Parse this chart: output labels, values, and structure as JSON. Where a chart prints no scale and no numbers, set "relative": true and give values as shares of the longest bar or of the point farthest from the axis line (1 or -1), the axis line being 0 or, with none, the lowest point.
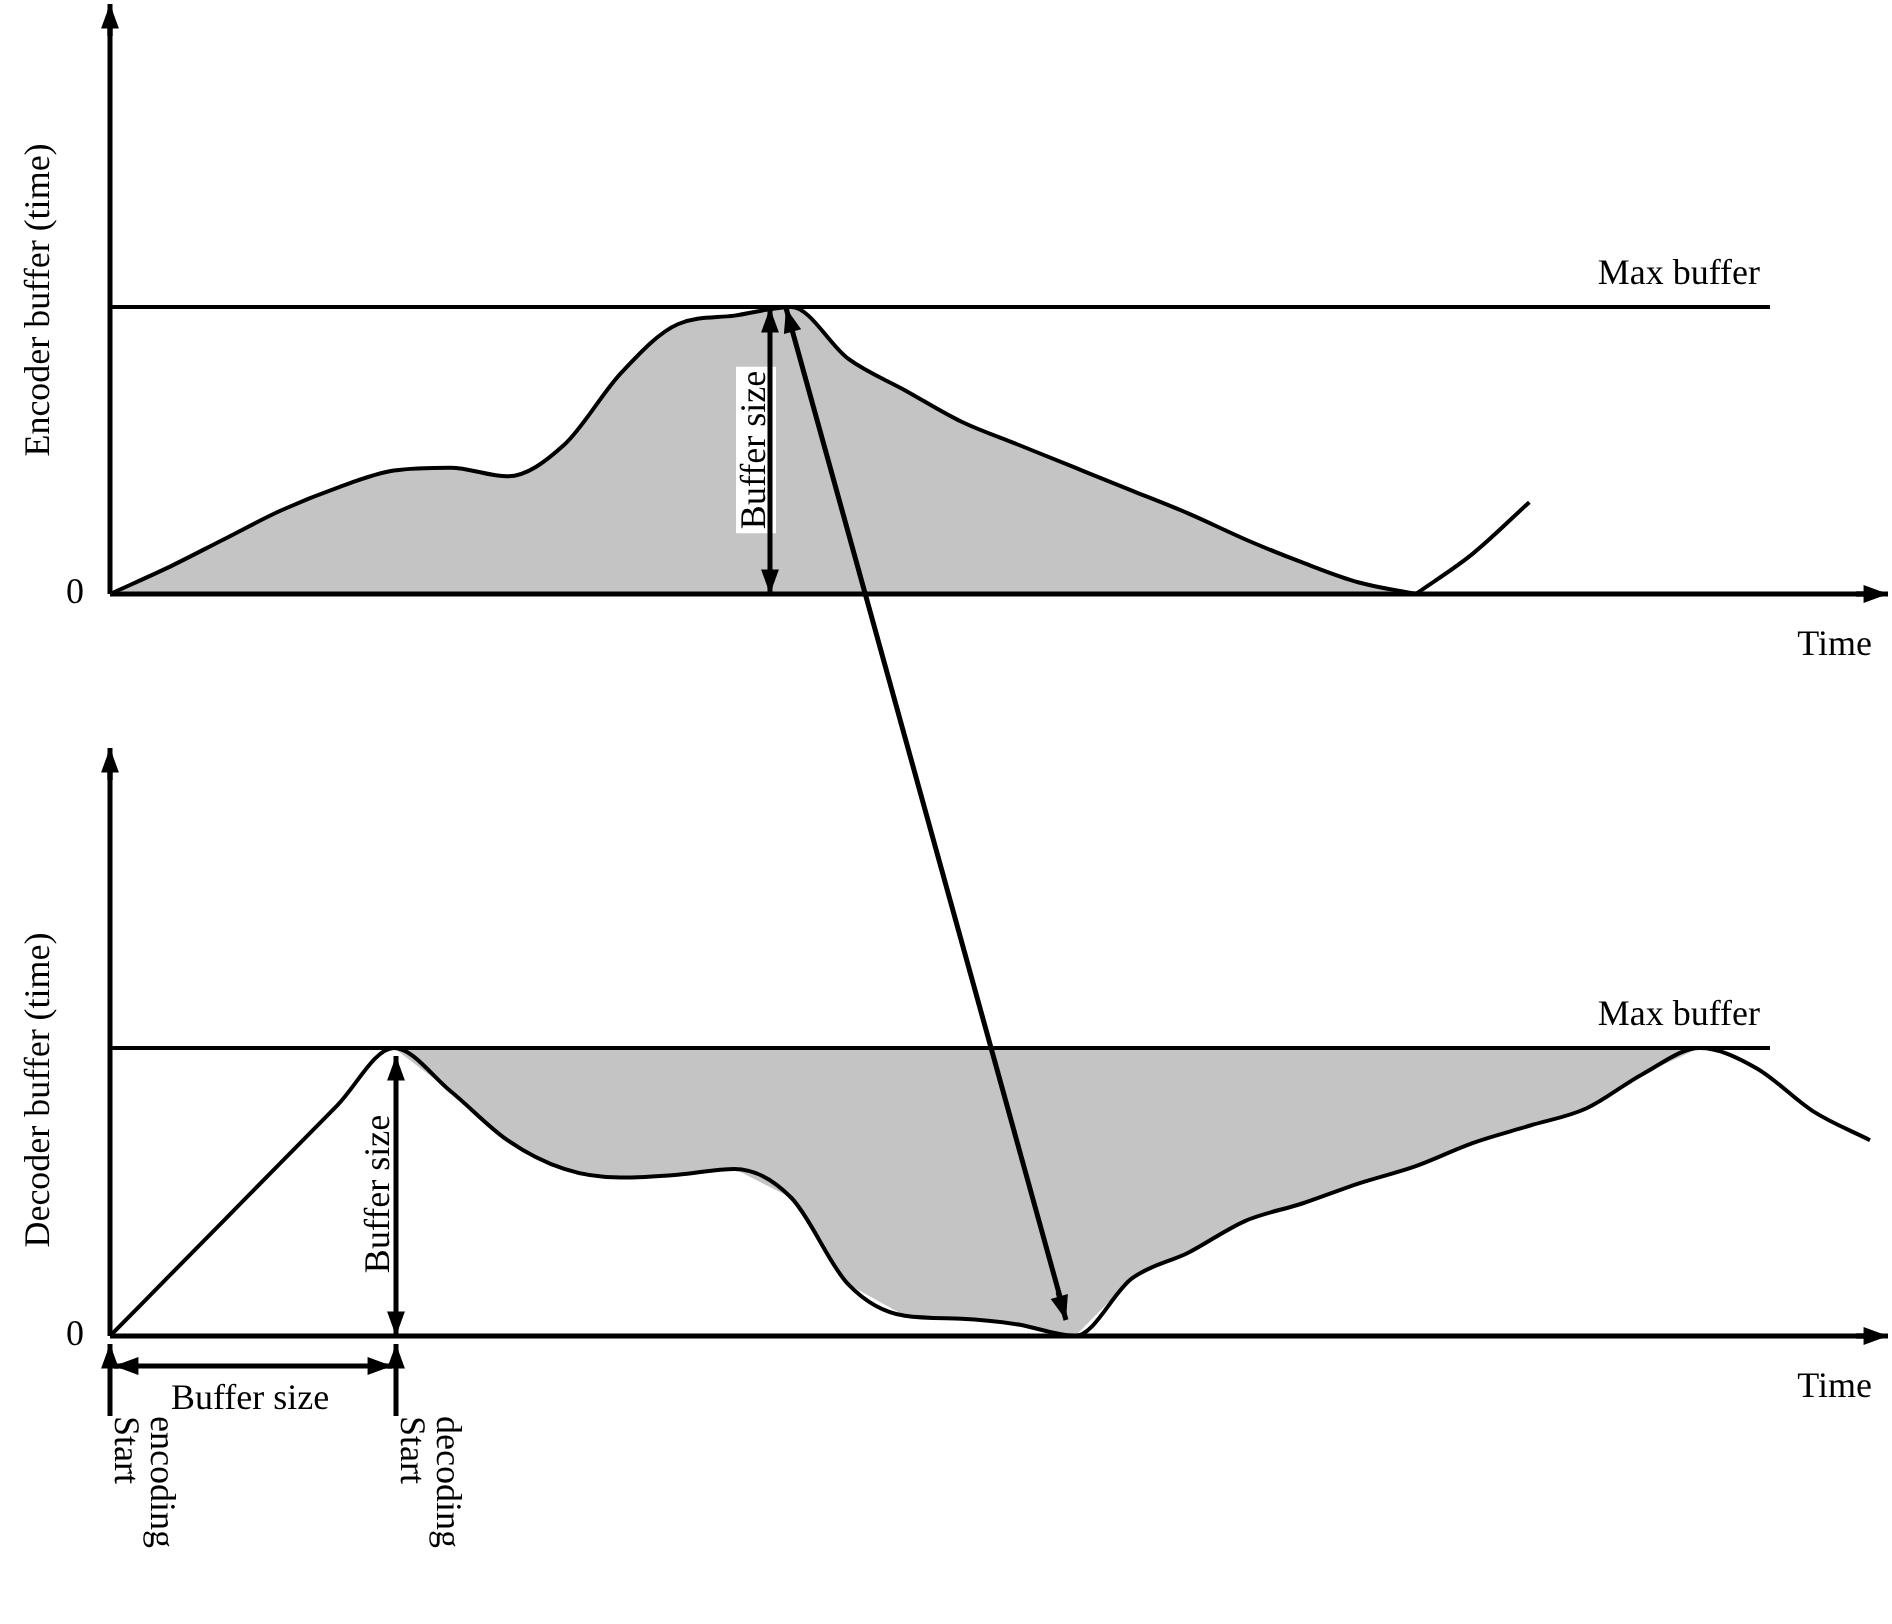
{
  "chart_data": [
    {
      "type": "area",
      "ylabel": "Encoder buffer (time)",
      "xlabel": "Time",
      "relative": true,
      "categories": [
        null,
        null,
        null,
        null,
        null,
        null,
        null,
        null,
        null,
        null,
        null,
        null,
        null,
        null,
        null,
        null,
        null,
        null,
        null,
        null,
        null,
        null,
        null,
        null,
        null,
        null,
        null,
        null,
        null,
        null,
        null,
        null
      ],
      "series": [
        {
          "color": "#c4c4c4",
          "values": [
            0,
            0.09,
            0.19,
            0.29,
            0.37,
            0.43,
            0.44,
            0.41,
            0.52,
            0.77,
            0.94,
            0.97,
            1,
            0.82,
            0.71,
            0.6,
            0.52,
            0.44,
            0.36,
            0.28,
            0.19,
            0.11,
            0.04,
            0,
            null,
            null,
            null,
            null,
            null,
            null,
            null,
            null
          ]
        },
        {
          "type": "line",
          "color": "#000000",
          "values": [
            null,
            null,
            null,
            null,
            null,
            null,
            null,
            null,
            null,
            null,
            null,
            null,
            null,
            null,
            null,
            null,
            null,
            null,
            null,
            null,
            null,
            null,
            null,
            0,
            0.14,
            0.32,
            null,
            null,
            null,
            null,
            null,
            null
          ]
        }
      ],
      "ref_lines": [
        {
          "axis": "y",
          "value": 1,
          "label": "Max buffer"
        }
      ],
      "annotations": [
        "Buffer size",
        "0"
      ]
    },
    {
      "type": "line",
      "ylabel": "Decoder buffer (time)",
      "xlabel": "Time",
      "relative": true,
      "categories": [
        null,
        null,
        null,
        null,
        null,
        null,
        null,
        null,
        null,
        null,
        null,
        null,
        null,
        null,
        null,
        null,
        null,
        null,
        null,
        null,
        null,
        null,
        null,
        null,
        null,
        null,
        null,
        null,
        null,
        null,
        null,
        null
      ],
      "series": [
        {
          "color": "#000000",
          "values": [
            0,
            0.2,
            0.4,
            0.6,
            0.8,
            1,
            0.85,
            0.68,
            0.58,
            0.55,
            0.56,
            0.58,
            0.48,
            0.18,
            0.07,
            0.06,
            0.04,
            0,
            0.2,
            0.29,
            0.4,
            0.46,
            0.53,
            0.59,
            0.67,
            0.73,
            0.79,
            0.91,
            1,
            0.93,
            0.78,
            0.68
          ],
          "lower": [
            null,
            null,
            null,
            null,
            null,
            1,
            0.85,
            0.68,
            0.58,
            0.55,
            0.56,
            0.58,
            0.48,
            0.18,
            0.07,
            0.06,
            0.04,
            0,
            0.2,
            0.29,
            0.4,
            0.46,
            0.53,
            0.59,
            0.67,
            0.73,
            0.79,
            0.91,
            1,
            null,
            null,
            null
          ],
          "upper": [
            null,
            null,
            null,
            null,
            null,
            1,
            1,
            1,
            1,
            1,
            1,
            1,
            1,
            1,
            1,
            1,
            1,
            1,
            1,
            1,
            1,
            1,
            1,
            1,
            1,
            1,
            1,
            1,
            1,
            null,
            null,
            null
          ]
        }
      ],
      "ref_lines": [
        {
          "axis": "y",
          "value": 1,
          "label": "Max buffer"
        }
      ],
      "annotations": [
        "Buffer size",
        "0",
        "Buffer size",
        "Start encoding",
        "Start decoding"
      ]
    }
  ]
}
